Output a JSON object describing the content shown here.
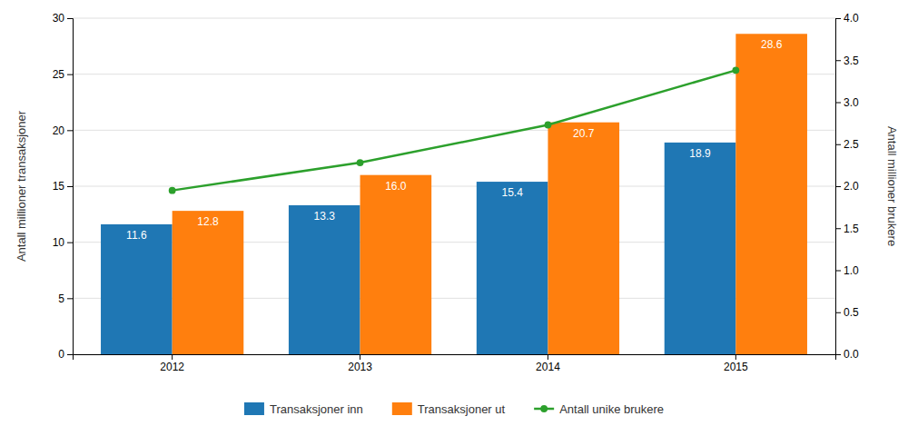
{
  "chart_data": {
    "type": "bar",
    "categories": [
      "2012",
      "2013",
      "2014",
      "2015"
    ],
    "series": [
      {
        "name": "Transaksjoner inn",
        "values": [
          11.6,
          13.3,
          15.4,
          18.9
        ],
        "data_labels": true
      },
      {
        "name": "Transaksjoner ut",
        "values": [
          12.8,
          16.0,
          20.7,
          28.6
        ],
        "value_labels": [
          "12.8",
          "16.0",
          "20.7",
          "28.6"
        ],
        "data_labels": true
      },
      {
        "name": "Antall unike brukere",
        "type": "line",
        "marker": "circle",
        "axis": "y2",
        "values": [
          1.95,
          2.28,
          2.73,
          3.38
        ]
      }
    ],
    "ylabel": "Antall millioner transaksjoner",
    "y2label": "Antall millioner brukere",
    "ylim": [
      0,
      30
    ],
    "yticks": [
      0,
      5,
      10,
      15,
      20,
      25,
      30
    ],
    "y2lim": [
      0,
      4.0
    ],
    "y2ticks": [
      {
        "value": 0,
        "label": "0.0"
      },
      0.5,
      {
        "value": 1,
        "label": "1.0"
      },
      1.5,
      {
        "value": 2,
        "label": "2.0"
      },
      2.5,
      {
        "value": 3,
        "label": "3.0"
      },
      3.5,
      {
        "value": 4,
        "label": "4.0"
      }
    ],
    "grid": true,
    "legend": "bottom"
  }
}
